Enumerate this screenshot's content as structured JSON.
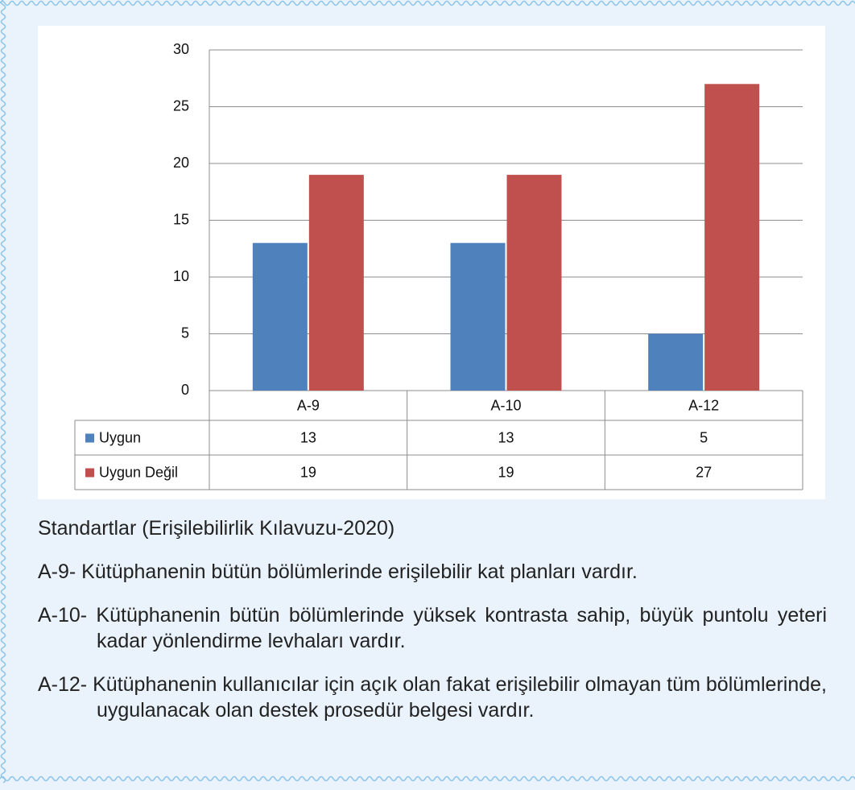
{
  "chart_data": {
    "type": "bar",
    "categories": [
      "A-9",
      "A-10",
      "A-12"
    ],
    "series": [
      {
        "name": "Uygun",
        "color": "#4f81bd",
        "values": [
          13,
          13,
          5
        ]
      },
      {
        "name": "Uygun Değil",
        "color": "#c0504d",
        "values": [
          19,
          19,
          27
        ]
      }
    ],
    "ylim": [
      0,
      30
    ],
    "yticks": [
      0,
      5,
      10,
      15,
      20,
      25,
      30
    ],
    "grid": true
  },
  "notes": {
    "title": "Standartlar (Erişilebilirlik Kılavuzu-2020)",
    "items": [
      "A-9- Kütüphanenin bütün bölümlerinde erişilebilir kat planları vardır.",
      "A-10- Kütüphanenin bütün bölümlerinde yüksek kontrasta sahip, büyük puntolu yeteri kadar yönlendirme levhaları vardır.",
      "A-12- Kütüphanenin kullanıcılar için açık olan fakat erişilebilir olmayan tüm bölümlerinde, uygulanacak olan destek prosedür belgesi vardır."
    ]
  }
}
